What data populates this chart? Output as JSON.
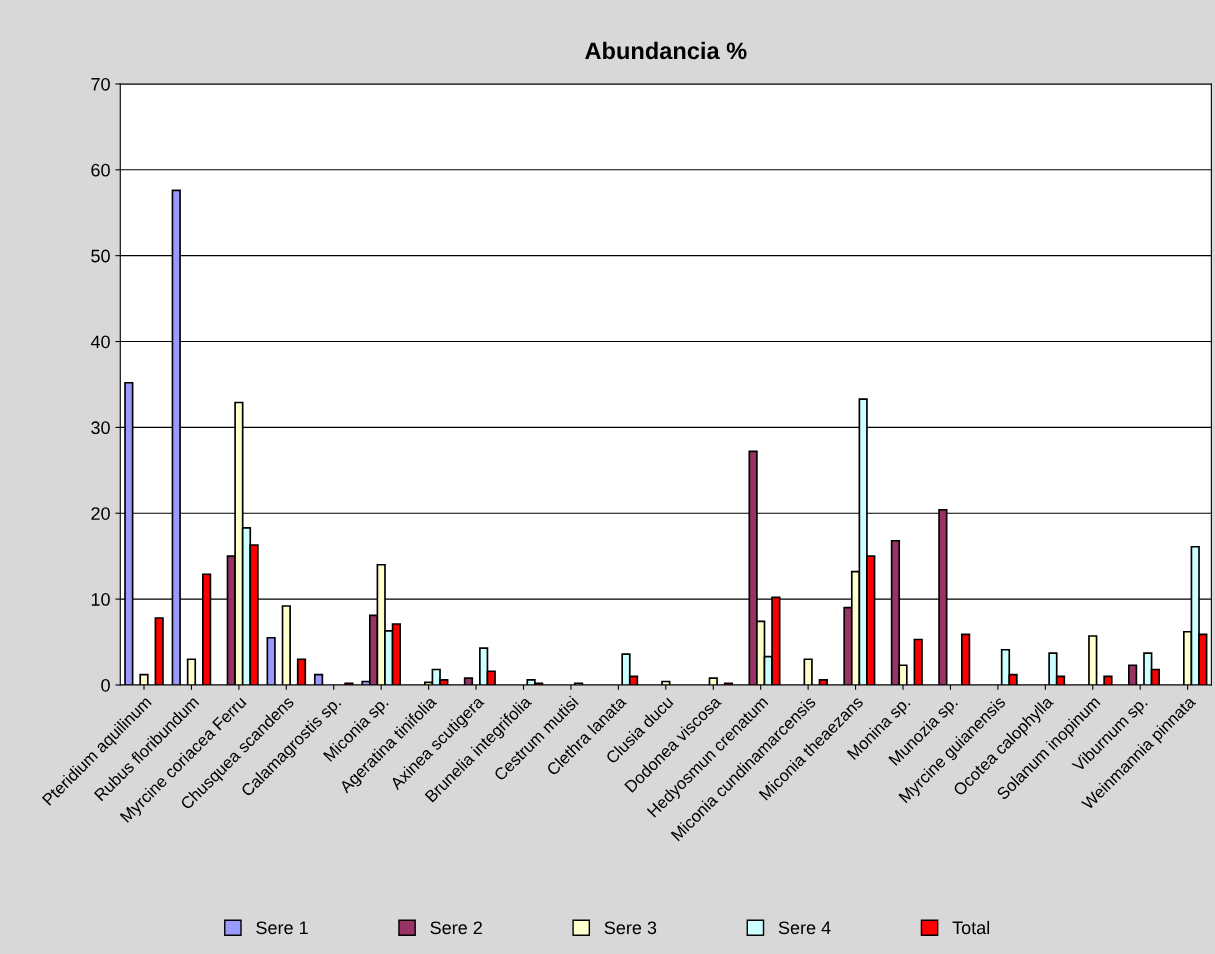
{
  "chart_data": {
    "type": "bar",
    "title": "Abundancia %",
    "categories": [
      "Pteridium aquilinum",
      "Rubus floribundum",
      "Myrcine coriacea Ferru",
      "Chusquea scandens",
      "Calamagrostis sp.",
      "Miconia sp.",
      "Ageratina tinifolia",
      "Axinea scutigera",
      "Brunelia integrifolia",
      "Cestrum mutisi",
      "Clethra lanata",
      "Clusia ducu",
      "Dodonea viscosa",
      "Hedyosmun crenatum",
      "Miconia cundinamarcensis",
      "Miconia theaezans",
      "Monina sp.",
      "Munozia sp.",
      "Myrcine guianensis",
      "Ocotea calophylla",
      "Solanum inopinum",
      "Viburnum sp.",
      "Weinmannia pinnata"
    ],
    "series": [
      {
        "name": "Sere 1",
        "color": "#9999ff",
        "values": [
          35.2,
          57.6,
          0,
          5.5,
          1.2,
          0.4,
          0,
          0,
          0,
          0,
          0,
          0,
          0,
          0,
          0,
          0,
          0,
          0,
          0,
          0,
          0,
          0,
          0
        ]
      },
      {
        "name": "Sere 2",
        "color": "#993366",
        "values": [
          0,
          0,
          15.0,
          0,
          0,
          8.1,
          0,
          0.8,
          0,
          0,
          0,
          0,
          0,
          27.2,
          0,
          9.0,
          16.8,
          20.4,
          0,
          0,
          0,
          2.3,
          0
        ]
      },
      {
        "name": "Sere 3",
        "color": "#ffffcc",
        "values": [
          1.2,
          3.0,
          32.9,
          9.2,
          0,
          14.0,
          0.3,
          0,
          0,
          0,
          0,
          0.4,
          0.8,
          7.4,
          3.0,
          13.2,
          2.3,
          0,
          0,
          0,
          5.7,
          0,
          6.2
        ]
      },
      {
        "name": "Sere 4",
        "color": "#ccffff",
        "values": [
          0,
          0,
          18.3,
          0,
          0,
          6.3,
          1.8,
          4.3,
          0.6,
          0.2,
          3.6,
          0,
          0,
          3.3,
          0,
          33.3,
          0,
          0,
          4.1,
          3.7,
          0,
          3.7,
          16.1
        ]
      },
      {
        "name": "Total",
        "color": "#ff0000",
        "values": [
          7.8,
          12.9,
          16.3,
          3.0,
          0.2,
          7.1,
          0.6,
          1.6,
          0.2,
          0,
          1.0,
          0,
          0.2,
          10.2,
          0.6,
          15.0,
          5.3,
          5.9,
          1.2,
          1.0,
          1.0,
          1.8,
          5.9
        ]
      }
    ],
    "ylim": [
      0,
      70
    ],
    "yticks": [
      0,
      10,
      20,
      30,
      40,
      50,
      60,
      70
    ],
    "grid": "y",
    "legend": "bottom"
  }
}
